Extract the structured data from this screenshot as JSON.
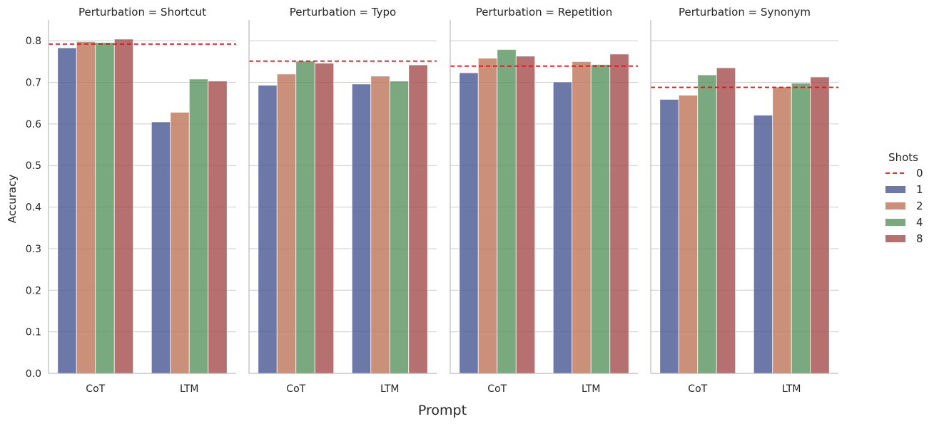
{
  "colors": {
    "series": [
      "#4c5b95",
      "#c0785b",
      "#5d9563",
      "#a6514f"
    ],
    "baseline": "#dd1111",
    "grid": "#cccccc",
    "axis": "#bbbbbb"
  },
  "chart_data": {
    "type": "bar",
    "ylabel": "Accuracy",
    "xlabel": "Prompt",
    "ylim": [
      0,
      0.85
    ],
    "yticks": [
      "0.0",
      "0.1",
      "0.2",
      "0.3",
      "0.4",
      "0.5",
      "0.6",
      "0.7",
      "0.8"
    ],
    "categories": [
      "CoT",
      "LTM"
    ],
    "legend": {
      "title": "Shots",
      "placement": "right",
      "items": [
        {
          "label": "0",
          "kind": "line"
        },
        {
          "label": "1",
          "kind": "bar"
        },
        {
          "label": "2",
          "kind": "bar"
        },
        {
          "label": "4",
          "kind": "bar"
        },
        {
          "label": "8",
          "kind": "bar"
        }
      ]
    },
    "panels": [
      {
        "title": "Perturbation = Shortcut",
        "baseline_0_shots": 0.792,
        "series": [
          {
            "name": "1",
            "values": [
              0.783,
              0.605
            ]
          },
          {
            "name": "2",
            "values": [
              0.798,
              0.628
            ]
          },
          {
            "name": "4",
            "values": [
              0.796,
              0.708
            ]
          },
          {
            "name": "8",
            "values": [
              0.804,
              0.703
            ]
          }
        ]
      },
      {
        "title": "Perturbation = Typo",
        "baseline_0_shots": 0.751,
        "series": [
          {
            "name": "1",
            "values": [
              0.693,
              0.696
            ]
          },
          {
            "name": "2",
            "values": [
              0.72,
              0.715
            ]
          },
          {
            "name": "4",
            "values": [
              0.751,
              0.703
            ]
          },
          {
            "name": "8",
            "values": [
              0.746,
              0.742
            ]
          }
        ]
      },
      {
        "title": "Perturbation = Repetition",
        "baseline_0_shots": 0.739,
        "series": [
          {
            "name": "1",
            "values": [
              0.723,
              0.701
            ]
          },
          {
            "name": "2",
            "values": [
              0.758,
              0.75
            ]
          },
          {
            "name": "4",
            "values": [
              0.779,
              0.743
            ]
          },
          {
            "name": "8",
            "values": [
              0.763,
              0.768
            ]
          }
        ]
      },
      {
        "title": "Perturbation = Synonym",
        "baseline_0_shots": 0.688,
        "series": [
          {
            "name": "1",
            "values": [
              0.659,
              0.621
            ]
          },
          {
            "name": "2",
            "values": [
              0.669,
              0.689
            ]
          },
          {
            "name": "4",
            "values": [
              0.718,
              0.698
            ]
          },
          {
            "name": "8",
            "values": [
              0.735,
              0.713
            ]
          }
        ]
      }
    ]
  }
}
